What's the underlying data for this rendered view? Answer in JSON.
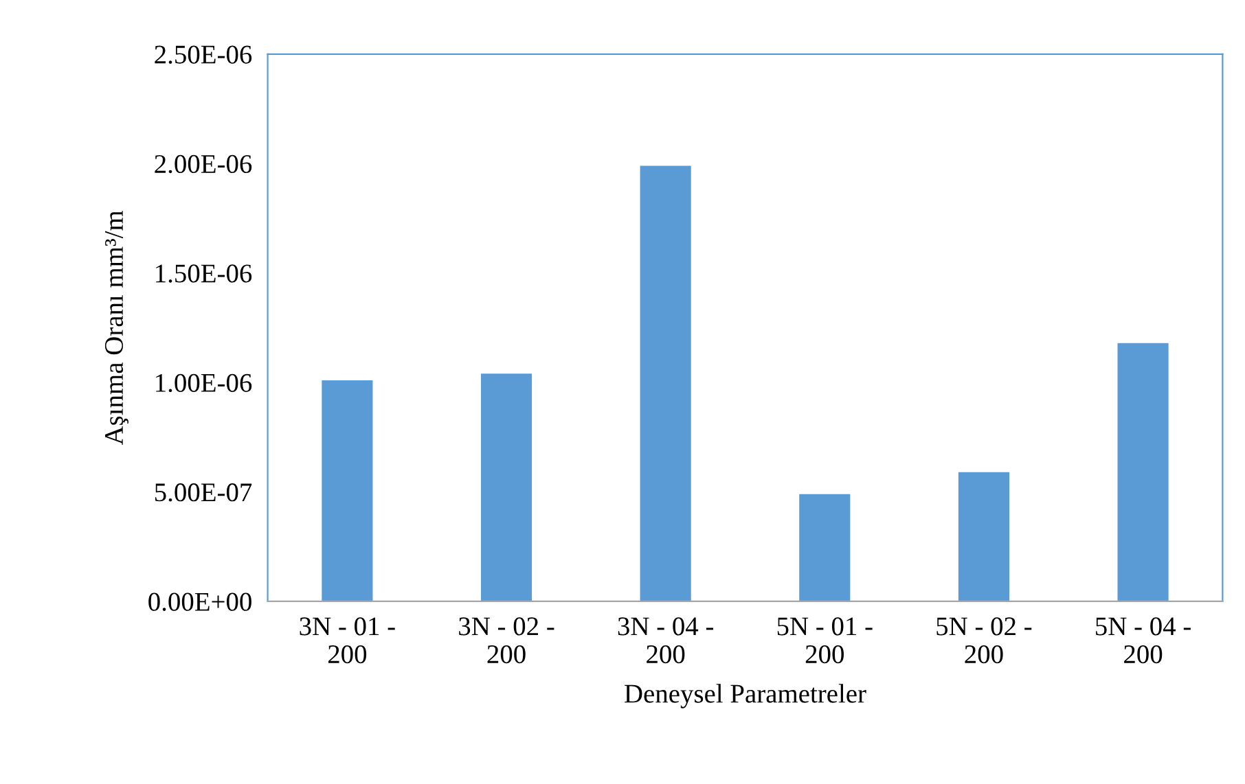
{
  "chart_data": {
    "type": "bar",
    "xlabel": "Deneysel Parametreler",
    "ylabel": "Aşınma Oranı mm³/m",
    "categories": [
      "3N - 01 -\n200",
      "3N - 02 -\n200",
      "3N - 04 -\n200",
      "5N - 01 -\n200",
      "5N - 02 -\n200",
      "5N - 04 -\n200"
    ],
    "values": [
      1.01e-06,
      1.04e-06,
      1.99e-06,
      4.9e-07,
      5.9e-07,
      1.18e-06
    ],
    "color": "#5b9bd5",
    "ylim": [
      0,
      2.5e-06
    ],
    "yticks": [
      {
        "value": 0,
        "label": "0.00E+00"
      },
      {
        "value": 5e-07,
        "label": "5.00E-07"
      },
      {
        "value": 1e-06,
        "label": "1.00E-06"
      },
      {
        "value": 1.5e-06,
        "label": "1.50E-06"
      },
      {
        "value": 2e-06,
        "label": "2.00E-06"
      },
      {
        "value": 2.5e-06,
        "label": "2.50E-06"
      }
    ],
    "grid": false,
    "legend": false
  }
}
